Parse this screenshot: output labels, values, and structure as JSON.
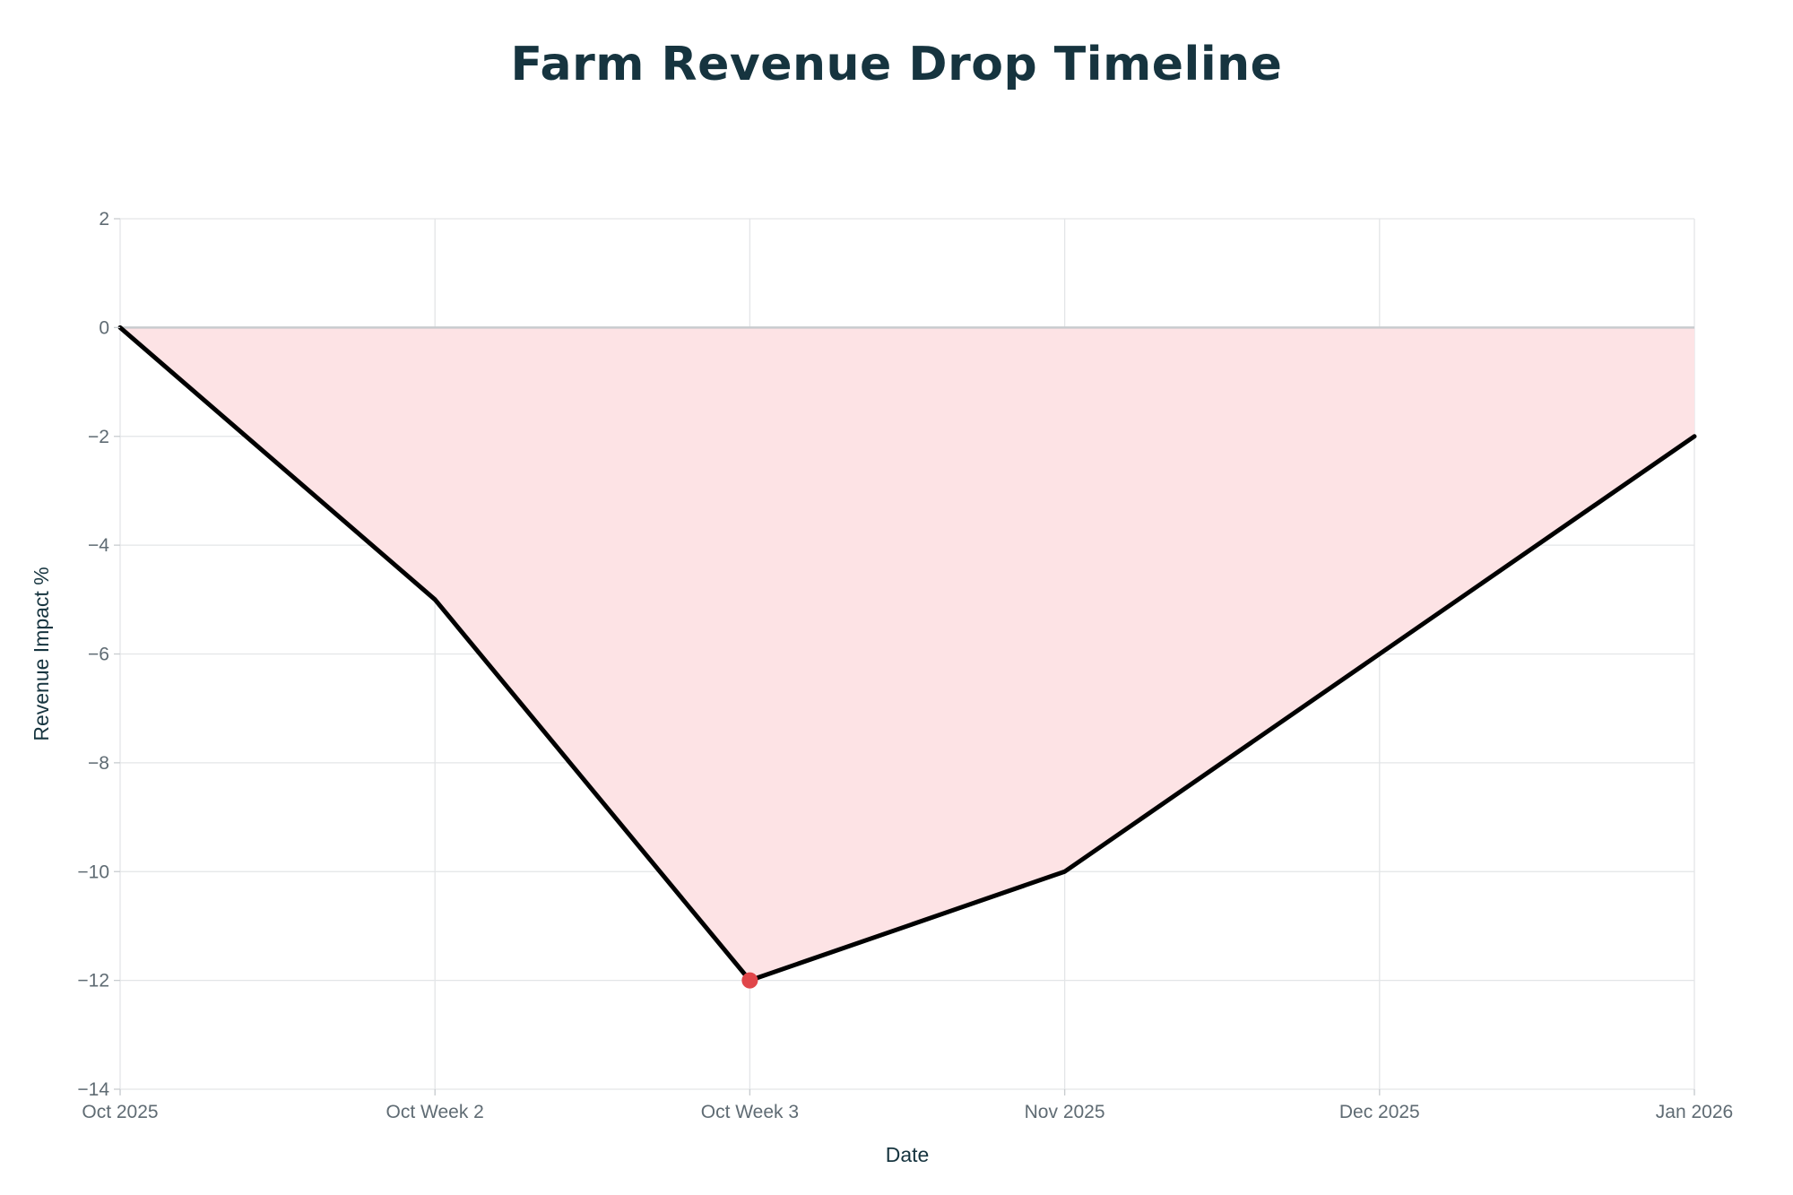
{
  "chart_data": {
    "type": "area",
    "title": "Farm Revenue Drop Timeline",
    "xlabel": "Date",
    "ylabel": "Revenue Impact %",
    "categories": [
      "Oct 2025",
      "Oct Week 2",
      "Oct Week 3",
      "Nov 2025",
      "Dec 2025",
      "Jan 2026"
    ],
    "series": [
      {
        "values": [
          0,
          -5,
          -12,
          -10,
          -6,
          -2
        ]
      }
    ],
    "highlight": {
      "category": "Oct Week 3",
      "value": -12
    },
    "ylim": [
      -14,
      2
    ],
    "yticks": [
      2,
      0,
      -2,
      -4,
      -6,
      -8,
      -10,
      -12,
      -14
    ],
    "ytick_labels": [
      "2",
      "0",
      "−2",
      "−4",
      "−6",
      "−8",
      "−10",
      "−12",
      "−14"
    ],
    "grid": true,
    "colors": {
      "line": "#000000",
      "fill": "#fde3e5",
      "marker": "#e0464a",
      "zero_line": "#c8cccf",
      "grid": "#e3e5e7"
    }
  }
}
